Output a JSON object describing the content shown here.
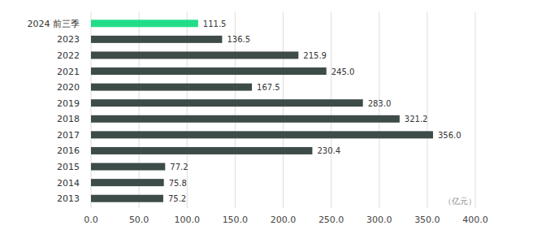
{
  "chart_data": {
    "type": "bar",
    "orientation": "horizontal",
    "categories": [
      "2024 前三季",
      "2023",
      "2022",
      "2021",
      "2020",
      "2019",
      "2018",
      "2017",
      "2016",
      "2015",
      "2014",
      "2013"
    ],
    "values": [
      111.5,
      136.5,
      215.9,
      245.0,
      167.5,
      283.0,
      321.2,
      356.0,
      230.4,
      77.2,
      75.8,
      75.2
    ],
    "value_labels": [
      "111.5",
      "136.5",
      "215.9",
      "245.0",
      "167.5",
      "283.0",
      "321.2",
      "356.0",
      "230.4",
      "77.2",
      "75.8",
      "75.2"
    ],
    "colors": [
      "#22dd88",
      "#3d4b49",
      "#3d4b49",
      "#3d4b49",
      "#3d4b49",
      "#3d4b49",
      "#3d4b49",
      "#3d4b49",
      "#3d4b49",
      "#3d4b49",
      "#3d4b49",
      "#3d4b49"
    ],
    "xlabel": "（亿元）",
    "xlim": [
      0,
      400
    ],
    "xticks": [
      {
        "value": 0,
        "label": "0.0"
      },
      {
        "value": 50,
        "label": "50.0"
      },
      {
        "value": 100,
        "label": "100.0"
      },
      {
        "value": 150,
        "label": "150.0"
      },
      {
        "value": 200,
        "label": "200.0"
      },
      {
        "value": 250,
        "label": "250.0"
      },
      {
        "value": 300,
        "label": "300.0"
      },
      {
        "value": 350,
        "label": "350.0"
      },
      {
        "value": 400,
        "label": "400.0"
      }
    ],
    "grid": true,
    "data_labels": true
  }
}
